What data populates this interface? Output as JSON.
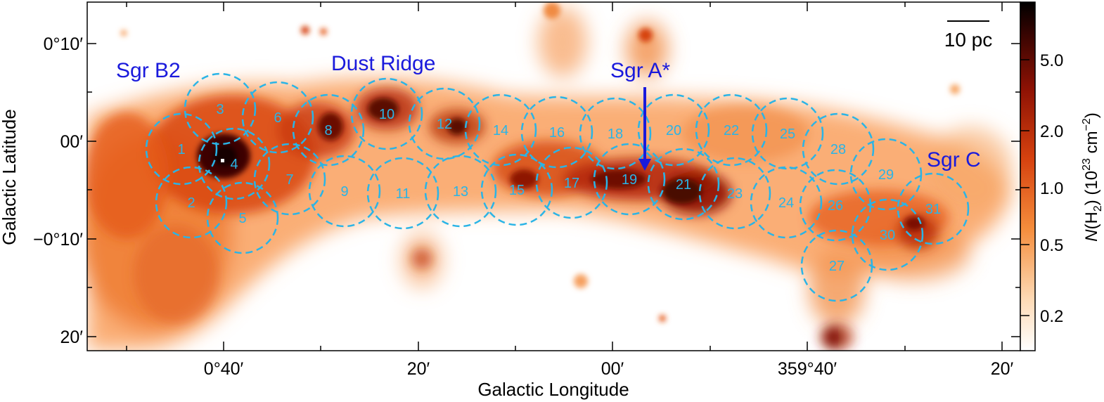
{
  "axes": {
    "xlabel": "Galactic Longitude",
    "ylabel": "Galactic Latitude",
    "x_ticks": [
      "0°40′",
      "20′",
      "00′",
      "359°40′",
      "20′"
    ],
    "y_ticks": [
      "0°10′",
      "00′",
      "−0°10′",
      "20′"
    ]
  },
  "colorbar": {
    "label_html": "N(H₂) (10²³ cm⁻²)",
    "label_var": "N",
    "label_sub": "(H",
    "label_sub2": "2",
    "label_rest": ") (10",
    "label_exp": "23",
    "label_unit": " cm",
    "label_unit_exp": "−2",
    "label_close": ")",
    "ticks": [
      "5.0",
      "2.0",
      "1.0",
      "0.5",
      "0.2"
    ]
  },
  "scale_bar": {
    "label": "10 pc"
  },
  "sources": {
    "sgr_b2": "Sgr B2",
    "dust_ridge": "Dust Ridge",
    "sgr_a": "Sgr A*",
    "sgr_c": "Sgr C"
  },
  "regions": [
    "1",
    "2",
    "3",
    "4",
    "5",
    "6",
    "7",
    "8",
    "9",
    "10",
    "11",
    "12",
    "13",
    "14",
    "15",
    "16",
    "17",
    "18",
    "19",
    "20",
    "21",
    "22",
    "23",
    "24",
    "25",
    "26",
    "27",
    "28",
    "29",
    "30",
    "31"
  ],
  "colors": {
    "region_circle": "#2ab4e6",
    "source_label": "#1a1adc",
    "arrow": "#1a1adc"
  }
}
